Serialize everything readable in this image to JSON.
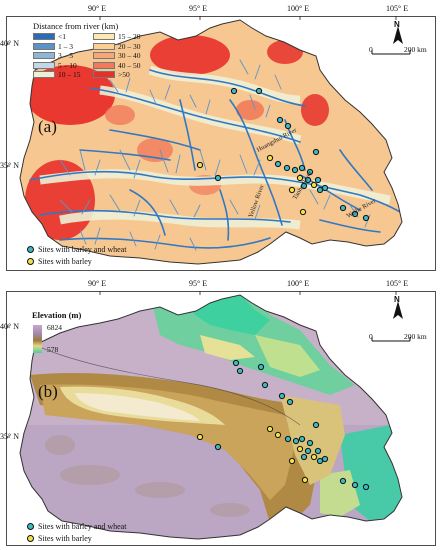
{
  "panel_a": {
    "label": "(a)",
    "legend_title": "Distance from river (km)",
    "legend_items": [
      {
        "label": "<1",
        "color": "#2b6cb8"
      },
      {
        "label": "1 – 3",
        "color": "#5b93c9"
      },
      {
        "label": "3 – 5",
        "color": "#8fb6d8"
      },
      {
        "label": "5 – 10",
        "color": "#c2d8e5"
      },
      {
        "label": "10 – 15",
        "color": "#eef0d6"
      },
      {
        "label": "15 – 20",
        "color": "#fde8b0"
      },
      {
        "label": "20 – 30",
        "color": "#fbcf92"
      },
      {
        "label": "30 – 40",
        "color": "#f7a775"
      },
      {
        "label": "40 – 50",
        "color": "#f07b5a"
      },
      {
        "label": ">50",
        "color": "#e8302b"
      }
    ],
    "river_labels": [
      "Huangshui River",
      "Yellow River",
      "Taohe River",
      "Weihe River"
    ],
    "sites_legend": [
      {
        "label": "Sites with barley and wheat",
        "color": "#3cb9c4"
      },
      {
        "label": "Sites with barley",
        "color": "#f2e04a"
      }
    ]
  },
  "panel_b": {
    "label": "(b)",
    "legend_title": "Elevation (m)",
    "elev_max": "6824",
    "elev_min": "578",
    "sites_legend": [
      {
        "label": "Sites with barley and wheat",
        "color": "#3cb9c4"
      },
      {
        "label": "Sites with barley",
        "color": "#f2e04a"
      }
    ]
  },
  "axes": {
    "lon_ticks": [
      "90° E",
      "95° E",
      "100° E",
      "105° E"
    ],
    "lat_ticks": [
      "40° N",
      "35° N"
    ]
  },
  "scale_bar": {
    "start": "0",
    "end": "200 km"
  },
  "north_label": "N",
  "colors": {
    "site_barley_wheat": "#3cb9c4",
    "site_barley": "#f2e04a",
    "river": "#2f78c4",
    "boundary": "#333333"
  }
}
